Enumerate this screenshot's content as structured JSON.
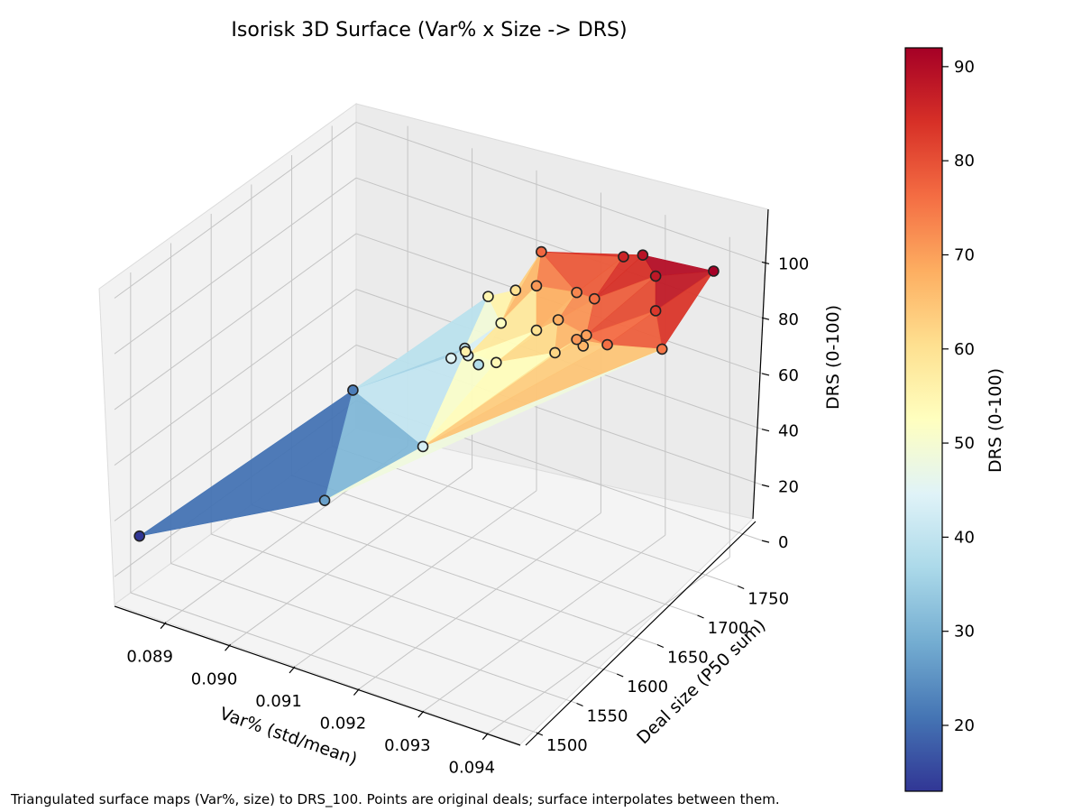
{
  "chart_data": {
    "type": "surface3d",
    "title": "Isorisk 3D Surface (Var% x Size -> DRS)",
    "xlabel": "Var% (std/mean)",
    "ylabel": "Deal size (P50 sum)",
    "zlabel": "DRS (0-100)",
    "x_ticks": [
      "0.089",
      "0.090",
      "0.091",
      "0.092",
      "0.093",
      "0.094"
    ],
    "y_ticks": [
      "1500",
      "1550",
      "1600",
      "1650",
      "1700",
      "1750"
    ],
    "z_ticks": [
      "0",
      "20",
      "40",
      "60",
      "80",
      "100"
    ],
    "xlim": [
      0.0882,
      0.0945
    ],
    "ylim": [
      1480,
      1780
    ],
    "zlim": [
      -10,
      105
    ],
    "colormap": "RdYlBu_r",
    "colorbar": {
      "label": "DRS (0-100)",
      "range": [
        13,
        92
      ],
      "ticks": [
        "20",
        "30",
        "40",
        "50",
        "60",
        "70",
        "80",
        "90"
      ]
    },
    "grid": true,
    "points": [
      {
        "x": 0.0884,
        "y": 1495,
        "z": 13
      },
      {
        "x": 0.0889,
        "y": 1720,
        "z": 22
      },
      {
        "x": 0.0904,
        "y": 1565,
        "z": 27
      },
      {
        "x": 0.0902,
        "y": 1755,
        "z": 40
      },
      {
        "x": 0.0904,
        "y": 1722,
        "z": 45
      },
      {
        "x": 0.0905,
        "y": 1735,
        "z": 44
      },
      {
        "x": 0.0905,
        "y": 1748,
        "z": 38
      },
      {
        "x": 0.0909,
        "y": 1700,
        "z": 56
      },
      {
        "x": 0.0907,
        "y": 1760,
        "z": 52
      },
      {
        "x": 0.0903,
        "y": 1776,
        "z": 55
      },
      {
        "x": 0.0907,
        "y": 1778,
        "z": 60
      },
      {
        "x": 0.0913,
        "y": 1615,
        "z": 43
      },
      {
        "x": 0.0913,
        "y": 1706,
        "z": 54
      },
      {
        "x": 0.0915,
        "y": 1740,
        "z": 60
      },
      {
        "x": 0.0913,
        "y": 1756,
        "z": 71
      },
      {
        "x": 0.0911,
        "y": 1778,
        "z": 77
      },
      {
        "x": 0.0919,
        "y": 1735,
        "z": 68
      },
      {
        "x": 0.0919,
        "y": 1758,
        "z": 73
      },
      {
        "x": 0.0921,
        "y": 1715,
        "z": 62
      },
      {
        "x": 0.0925,
        "y": 1718,
        "z": 67
      },
      {
        "x": 0.0925,
        "y": 1722,
        "z": 70
      },
      {
        "x": 0.0923,
        "y": 1748,
        "z": 76
      },
      {
        "x": 0.0925,
        "y": 1710,
        "z": 71
      },
      {
        "x": 0.0924,
        "y": 1776,
        "z": 86
      },
      {
        "x": 0.0931,
        "y": 1700,
        "z": 76
      },
      {
        "x": 0.0927,
        "y": 1776,
        "z": 89
      },
      {
        "x": 0.0931,
        "y": 1760,
        "z": 88
      },
      {
        "x": 0.0934,
        "y": 1736,
        "z": 83
      },
      {
        "x": 0.0938,
        "y": 1776,
        "z": 92
      },
      {
        "x": 0.0937,
        "y": 1720,
        "z": 75
      }
    ]
  },
  "footer_note": "Triangulated surface maps (Var%, size) to DRS_100. Points are original deals; surface interpolates between them."
}
